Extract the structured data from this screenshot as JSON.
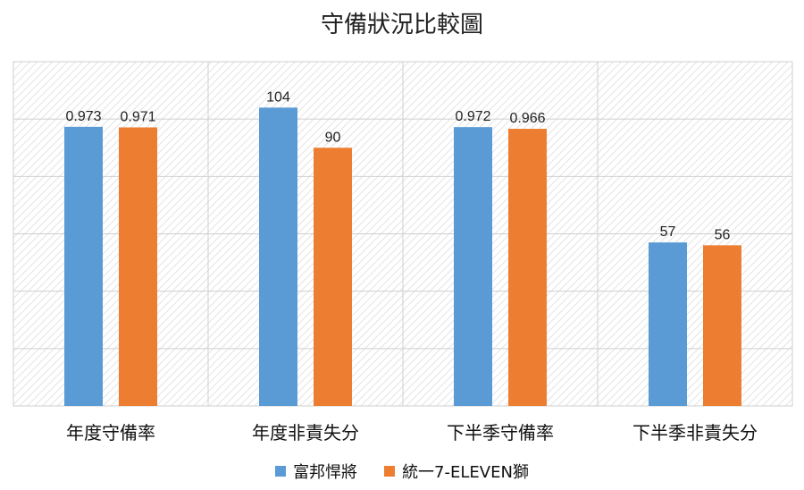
{
  "chart_data": {
    "type": "bar",
    "title": "守備狀況比較圖",
    "categories": [
      "年度守備率",
      "年度非責失分",
      "下半季守備率",
      "下半季非責失分"
    ],
    "series": [
      {
        "name": "富邦悍將",
        "color": "#5B9BD5",
        "values": [
          0.973,
          104,
          0.972,
          57
        ],
        "labels": [
          "0.973",
          "104",
          "0.972",
          "57"
        ]
      },
      {
        "name": "統一7-ELEVEN獅",
        "color": "#ED7D31",
        "values": [
          0.971,
          90,
          0.966,
          56
        ],
        "labels": [
          "0.971",
          "90",
          "0.966",
          "56"
        ]
      }
    ],
    "grid": true,
    "legend_position": "bottom"
  }
}
